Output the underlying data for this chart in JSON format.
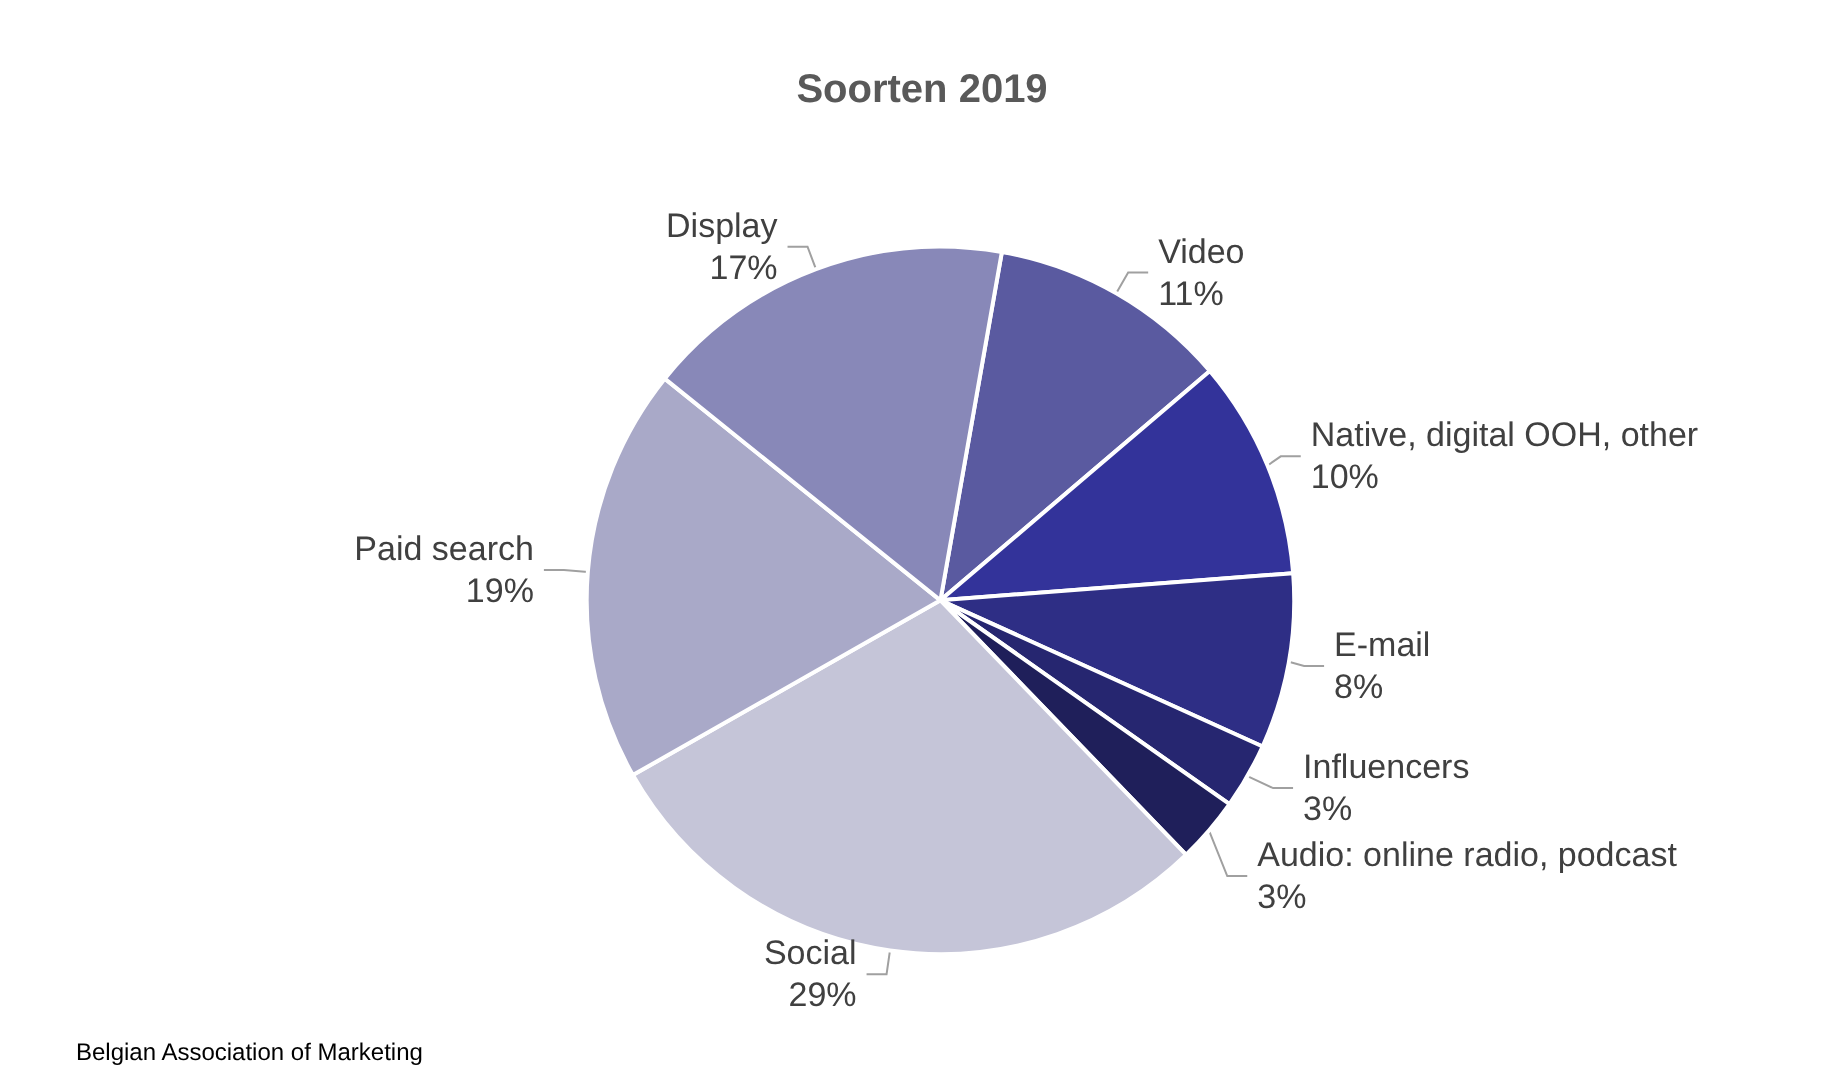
{
  "chart_data": {
    "type": "pie",
    "title": "Soorten 2019",
    "categories": [
      "Video",
      "Native, digital OOH, other",
      "E-mail",
      "Influencers",
      "Audio: online radio, podcast",
      "Social",
      "Paid search",
      "Display"
    ],
    "values": [
      11,
      10,
      8,
      3,
      3,
      29,
      19,
      17
    ],
    "value_labels": [
      "11%",
      "10%",
      "8%",
      "3%",
      "3%",
      "29%",
      "19%",
      "17%"
    ],
    "colors": [
      "#5a5aa0",
      "#33339a",
      "#2e2e85",
      "#262670",
      "#1f1f5a",
      "#c5c5d8",
      "#a9a9c8",
      "#8888b8"
    ],
    "legend": false,
    "annotations": [
      "Belgian Association of Marketing"
    ]
  }
}
